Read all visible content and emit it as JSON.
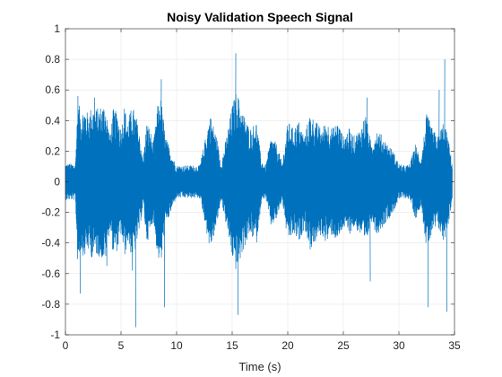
{
  "chart_data": {
    "type": "line",
    "title": "Noisy Validation Speech Signal",
    "xlabel": "Time (s)",
    "ylabel": "",
    "xlim": [
      0,
      35
    ],
    "ylim": [
      -1,
      1
    ],
    "xticks": [
      0,
      5,
      10,
      15,
      20,
      25,
      30,
      35
    ],
    "yticks": [
      -1,
      -0.8,
      -0.6,
      -0.4,
      -0.2,
      0,
      0.2,
      0.4,
      0.6,
      0.8,
      1
    ],
    "xtick_labels": [
      "0",
      "5",
      "10",
      "15",
      "20",
      "25",
      "30",
      "35"
    ],
    "ytick_labels": [
      "-1",
      "-0.8",
      "-0.6",
      "-0.4",
      "-0.2",
      "0",
      "0.2",
      "0.4",
      "0.6",
      "0.8",
      "1"
    ],
    "grid": true,
    "box": true,
    "series_color": "#0072BD",
    "axes_color": "#262626",
    "grid_color": "#e6e6e6",
    "signal": {
      "duration_s": 34.8,
      "noise_floor_amplitude": 0.12,
      "envelope": [
        [
          0.0,
          0.12
        ],
        [
          0.9,
          0.12
        ],
        [
          1.1,
          0.55
        ],
        [
          1.4,
          0.45
        ],
        [
          1.7,
          0.5
        ],
        [
          2.0,
          0.45
        ],
        [
          2.4,
          0.5
        ],
        [
          2.8,
          0.48
        ],
        [
          3.2,
          0.5
        ],
        [
          3.6,
          0.52
        ],
        [
          4.0,
          0.3
        ],
        [
          4.3,
          0.48
        ],
        [
          4.7,
          0.45
        ],
        [
          5.0,
          0.35
        ],
        [
          5.3,
          0.5
        ],
        [
          5.6,
          0.4
        ],
        [
          6.0,
          0.5
        ],
        [
          6.3,
          0.45
        ],
        [
          6.6,
          0.35
        ],
        [
          7.0,
          0.15
        ],
        [
          7.3,
          0.4
        ],
        [
          7.6,
          0.35
        ],
        [
          7.9,
          0.25
        ],
        [
          8.3,
          0.5
        ],
        [
          8.6,
          0.55
        ],
        [
          9.0,
          0.3
        ],
        [
          9.5,
          0.2
        ],
        [
          10.0,
          0.1
        ],
        [
          11.0,
          0.08
        ],
        [
          12.0,
          0.08
        ],
        [
          12.5,
          0.25
        ],
        [
          13.0,
          0.45
        ],
        [
          13.6,
          0.3
        ],
        [
          14.0,
          0.12
        ],
        [
          14.5,
          0.3
        ],
        [
          15.0,
          0.5
        ],
        [
          15.4,
          0.6
        ],
        [
          16.0,
          0.45
        ],
        [
          16.6,
          0.35
        ],
        [
          17.2,
          0.4
        ],
        [
          17.6,
          0.15
        ],
        [
          18.0,
          0.1
        ],
        [
          18.5,
          0.3
        ],
        [
          19.0,
          0.25
        ],
        [
          19.5,
          0.12
        ],
        [
          20.0,
          0.4
        ],
        [
          20.5,
          0.35
        ],
        [
          21.0,
          0.4
        ],
        [
          21.5,
          0.3
        ],
        [
          22.0,
          0.45
        ],
        [
          22.5,
          0.4
        ],
        [
          23.0,
          0.35
        ],
        [
          23.5,
          0.4
        ],
        [
          24.0,
          0.35
        ],
        [
          24.5,
          0.4
        ],
        [
          25.0,
          0.3
        ],
        [
          25.5,
          0.35
        ],
        [
          26.0,
          0.3
        ],
        [
          26.5,
          0.35
        ],
        [
          27.0,
          0.45
        ],
        [
          27.5,
          0.25
        ],
        [
          28.0,
          0.35
        ],
        [
          28.5,
          0.3
        ],
        [
          29.0,
          0.25
        ],
        [
          29.5,
          0.2
        ],
        [
          30.0,
          0.12
        ],
        [
          30.5,
          0.1
        ],
        [
          31.0,
          0.12
        ],
        [
          31.5,
          0.25
        ],
        [
          32.0,
          0.15
        ],
        [
          32.5,
          0.45
        ],
        [
          33.0,
          0.35
        ],
        [
          33.5,
          0.3
        ],
        [
          34.0,
          0.4
        ],
        [
          34.4,
          0.3
        ],
        [
          34.8,
          0.12
        ]
      ],
      "spikes": [
        [
          1.1,
          0.56
        ],
        [
          1.3,
          -0.73
        ],
        [
          2.6,
          0.55
        ],
        [
          3.7,
          -0.55
        ],
        [
          6.0,
          -0.58
        ],
        [
          6.3,
          -0.95
        ],
        [
          8.6,
          0.67
        ],
        [
          8.9,
          -0.82
        ],
        [
          15.3,
          0.84
        ],
        [
          15.5,
          -0.87
        ],
        [
          27.1,
          0.55
        ],
        [
          27.4,
          -0.65
        ],
        [
          32.6,
          -0.82
        ],
        [
          33.6,
          0.6
        ],
        [
          34.1,
          0.8
        ],
        [
          34.3,
          -0.85
        ]
      ]
    }
  }
}
